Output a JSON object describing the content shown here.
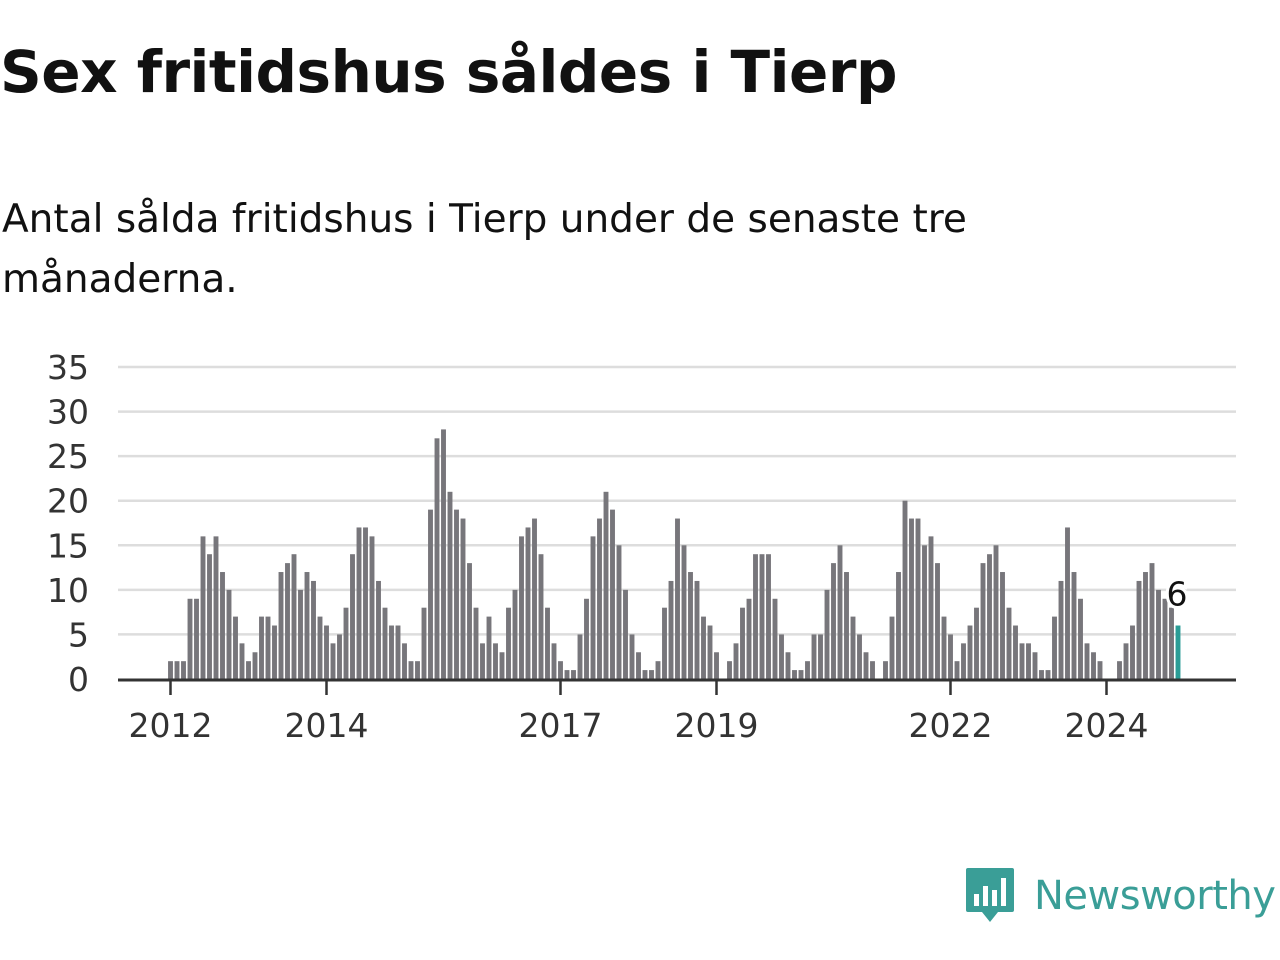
{
  "title": "Sex fritidshus såldes i Tierp",
  "subtitle": "Antal sålda fritidshus i Tierp under de senaste tre månaderna.",
  "brand": {
    "name": "Newsworthy",
    "logo_icon": "bar-chart-speech-bubble",
    "color": "#3a9e97"
  },
  "colors": {
    "bar": "#77767b",
    "highlight": "#2a9d96",
    "grid": "#dddddd",
    "axis": "#333333"
  },
  "chart_data": {
    "type": "bar",
    "title": "Sex fritidshus såldes i Tierp",
    "subtitle": "Antal sålda fritidshus i Tierp under de senaste tre månaderna.",
    "xlabel": "",
    "ylabel": "",
    "ylim": [
      0,
      35
    ],
    "yticks": [
      0,
      5,
      10,
      15,
      20,
      25,
      30,
      35
    ],
    "grid": true,
    "x_tick_labels": [
      {
        "label": "2012",
        "index": 0
      },
      {
        "label": "2014",
        "index": 24
      },
      {
        "label": "2017",
        "index": 60
      },
      {
        "label": "2019",
        "index": 84
      },
      {
        "label": "2022",
        "index": 120
      },
      {
        "label": "2024",
        "index": 144
      }
    ],
    "values": [
      2,
      2,
      2,
      9,
      9,
      16,
      14,
      16,
      12,
      10,
      7,
      4,
      2,
      3,
      7,
      7,
      6,
      12,
      13,
      14,
      10,
      12,
      11,
      7,
      6,
      4,
      5,
      8,
      14,
      17,
      17,
      16,
      11,
      8,
      6,
      6,
      4,
      2,
      2,
      8,
      19,
      27,
      28,
      21,
      19,
      18,
      13,
      8,
      4,
      7,
      4,
      3,
      8,
      10,
      16,
      17,
      18,
      14,
      8,
      4,
      2,
      1,
      1,
      5,
      9,
      16,
      18,
      21,
      19,
      15,
      10,
      5,
      3,
      1,
      1,
      2,
      8,
      11,
      18,
      15,
      12,
      11,
      7,
      6,
      3,
      0,
      2,
      4,
      8,
      9,
      14,
      14,
      14,
      9,
      5,
      3,
      1,
      1,
      2,
      5,
      5,
      10,
      13,
      15,
      12,
      7,
      5,
      3,
      2,
      0,
      2,
      7,
      12,
      20,
      18,
      18,
      15,
      16,
      13,
      7,
      5,
      2,
      4,
      6,
      8,
      13,
      14,
      15,
      12,
      8,
      6,
      4,
      4,
      3,
      1,
      1,
      7,
      11,
      17,
      12,
      9,
      4,
      3,
      2,
      0,
      0,
      2,
      4,
      6,
      11,
      12,
      13,
      10,
      9,
      8,
      6
    ],
    "highlight_last": true,
    "annotation": {
      "text": "6",
      "index": 155
    }
  }
}
